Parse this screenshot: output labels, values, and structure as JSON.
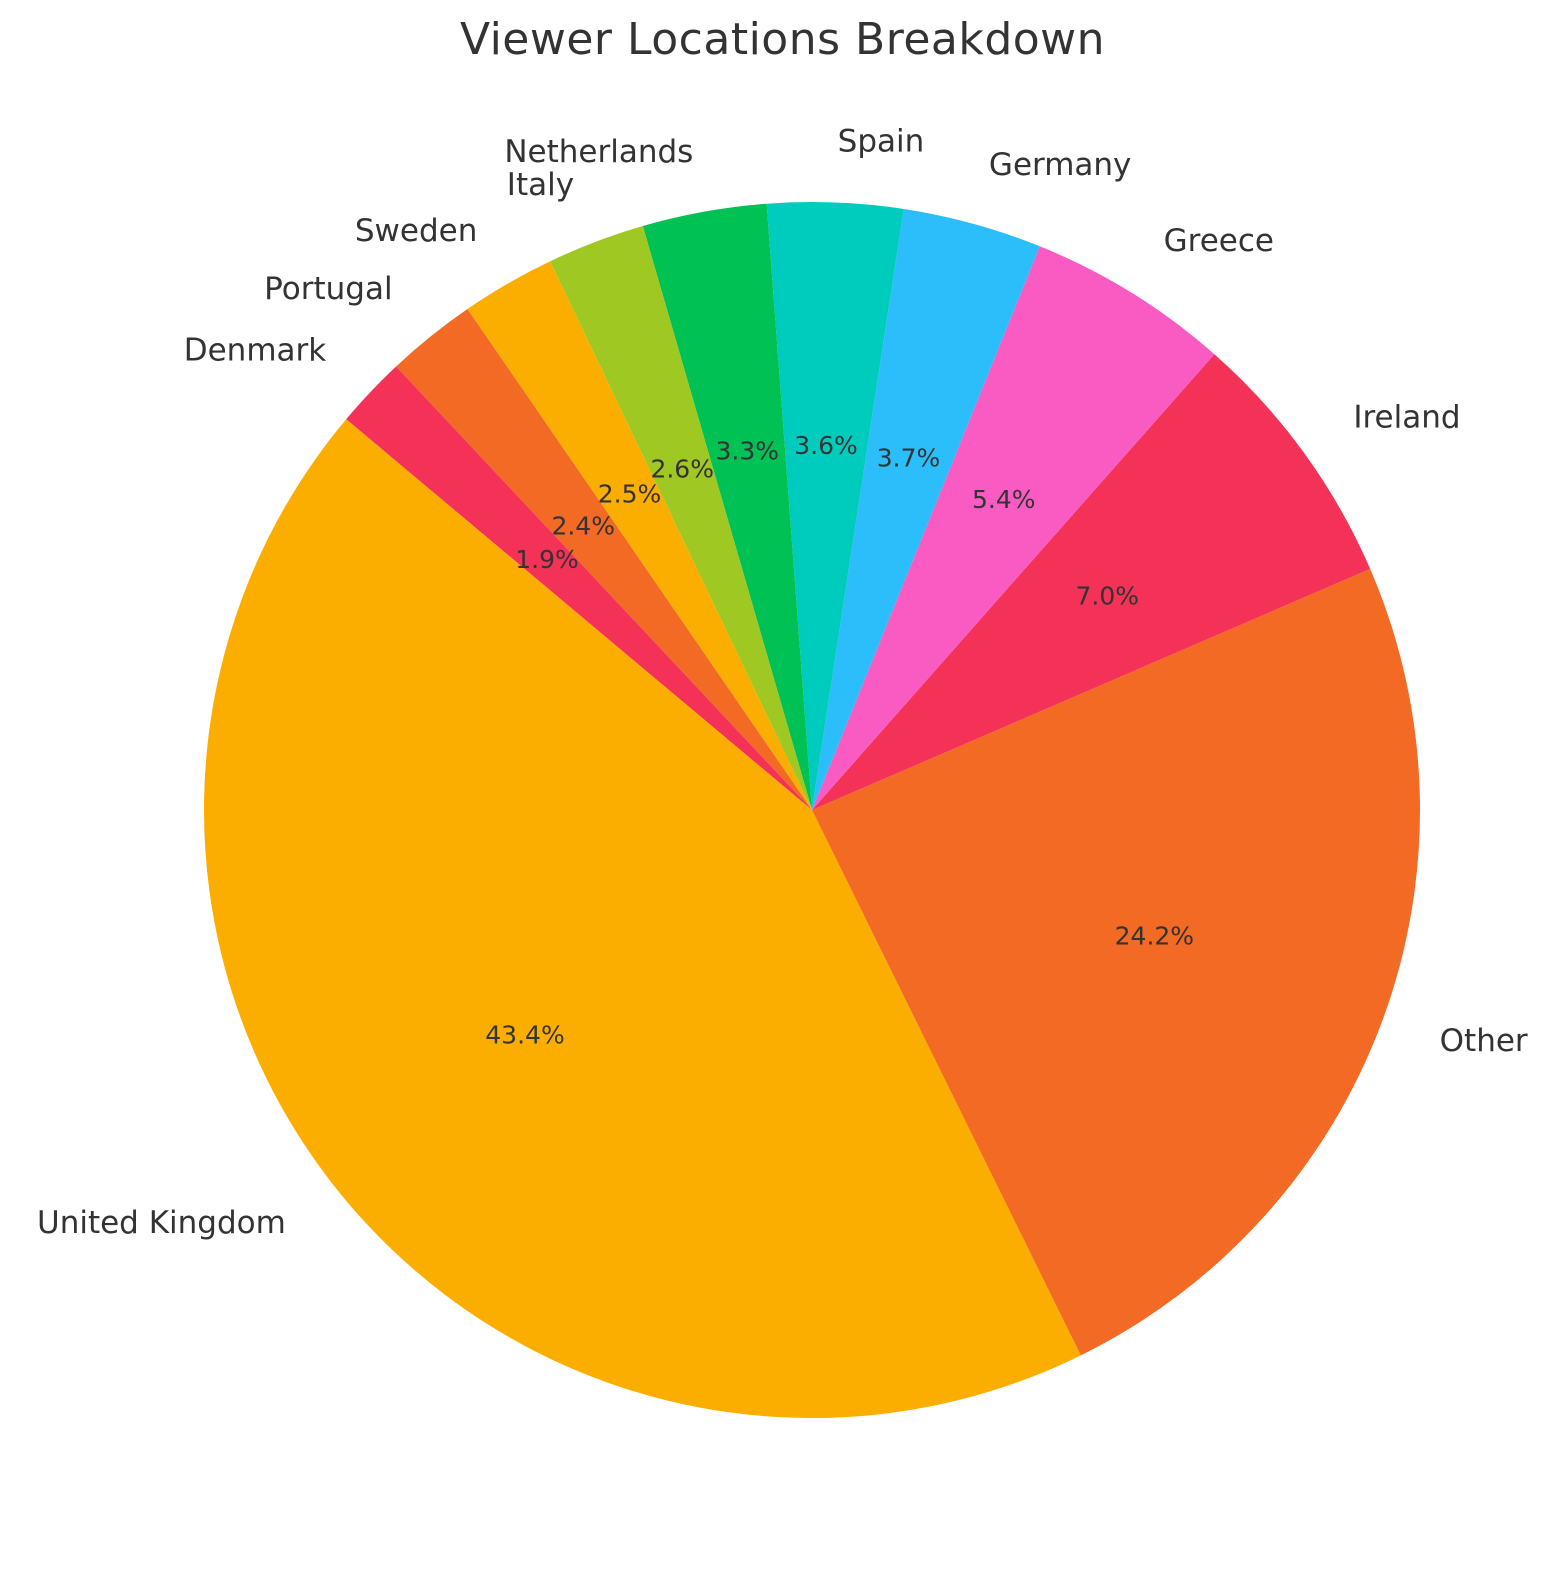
{
  "chart_data": {
    "type": "pie",
    "title": "Viewer Locations Breakdown",
    "start_angle_deg": 140,
    "direction": "counterclockwise",
    "slices": [
      {
        "label": "United Kingdom",
        "value": 43.4,
        "pct_label": "43.4%",
        "color": "#FBAE00"
      },
      {
        "label": "Other",
        "value": 24.2,
        "pct_label": "24.2%",
        "color": "#F26A23"
      },
      {
        "label": "Ireland",
        "value": 7.0,
        "pct_label": "7.0%",
        "color": "#F43157"
      },
      {
        "label": "Greece",
        "value": 5.4,
        "pct_label": "5.4%",
        "color": "#F95BC3"
      },
      {
        "label": "Germany",
        "value": 3.7,
        "pct_label": "3.7%",
        "color": "#2CBDFB"
      },
      {
        "label": "Spain",
        "value": 3.6,
        "pct_label": "3.6%",
        "color": "#00CCBE"
      },
      {
        "label": "Netherlands",
        "value": 3.3,
        "pct_label": "3.3%",
        "color": "#00C153"
      },
      {
        "label": "Italy",
        "value": 2.6,
        "pct_label": "2.6%",
        "color": "#A0C823"
      },
      {
        "label": "Sweden",
        "value": 2.5,
        "pct_label": "2.5%",
        "color": "#FBAE00"
      },
      {
        "label": "Portugal",
        "value": 2.4,
        "pct_label": "2.4%",
        "color": "#F26A23"
      },
      {
        "label": "Denmark",
        "value": 1.9,
        "pct_label": "1.9%",
        "color": "#F43157"
      }
    ]
  }
}
